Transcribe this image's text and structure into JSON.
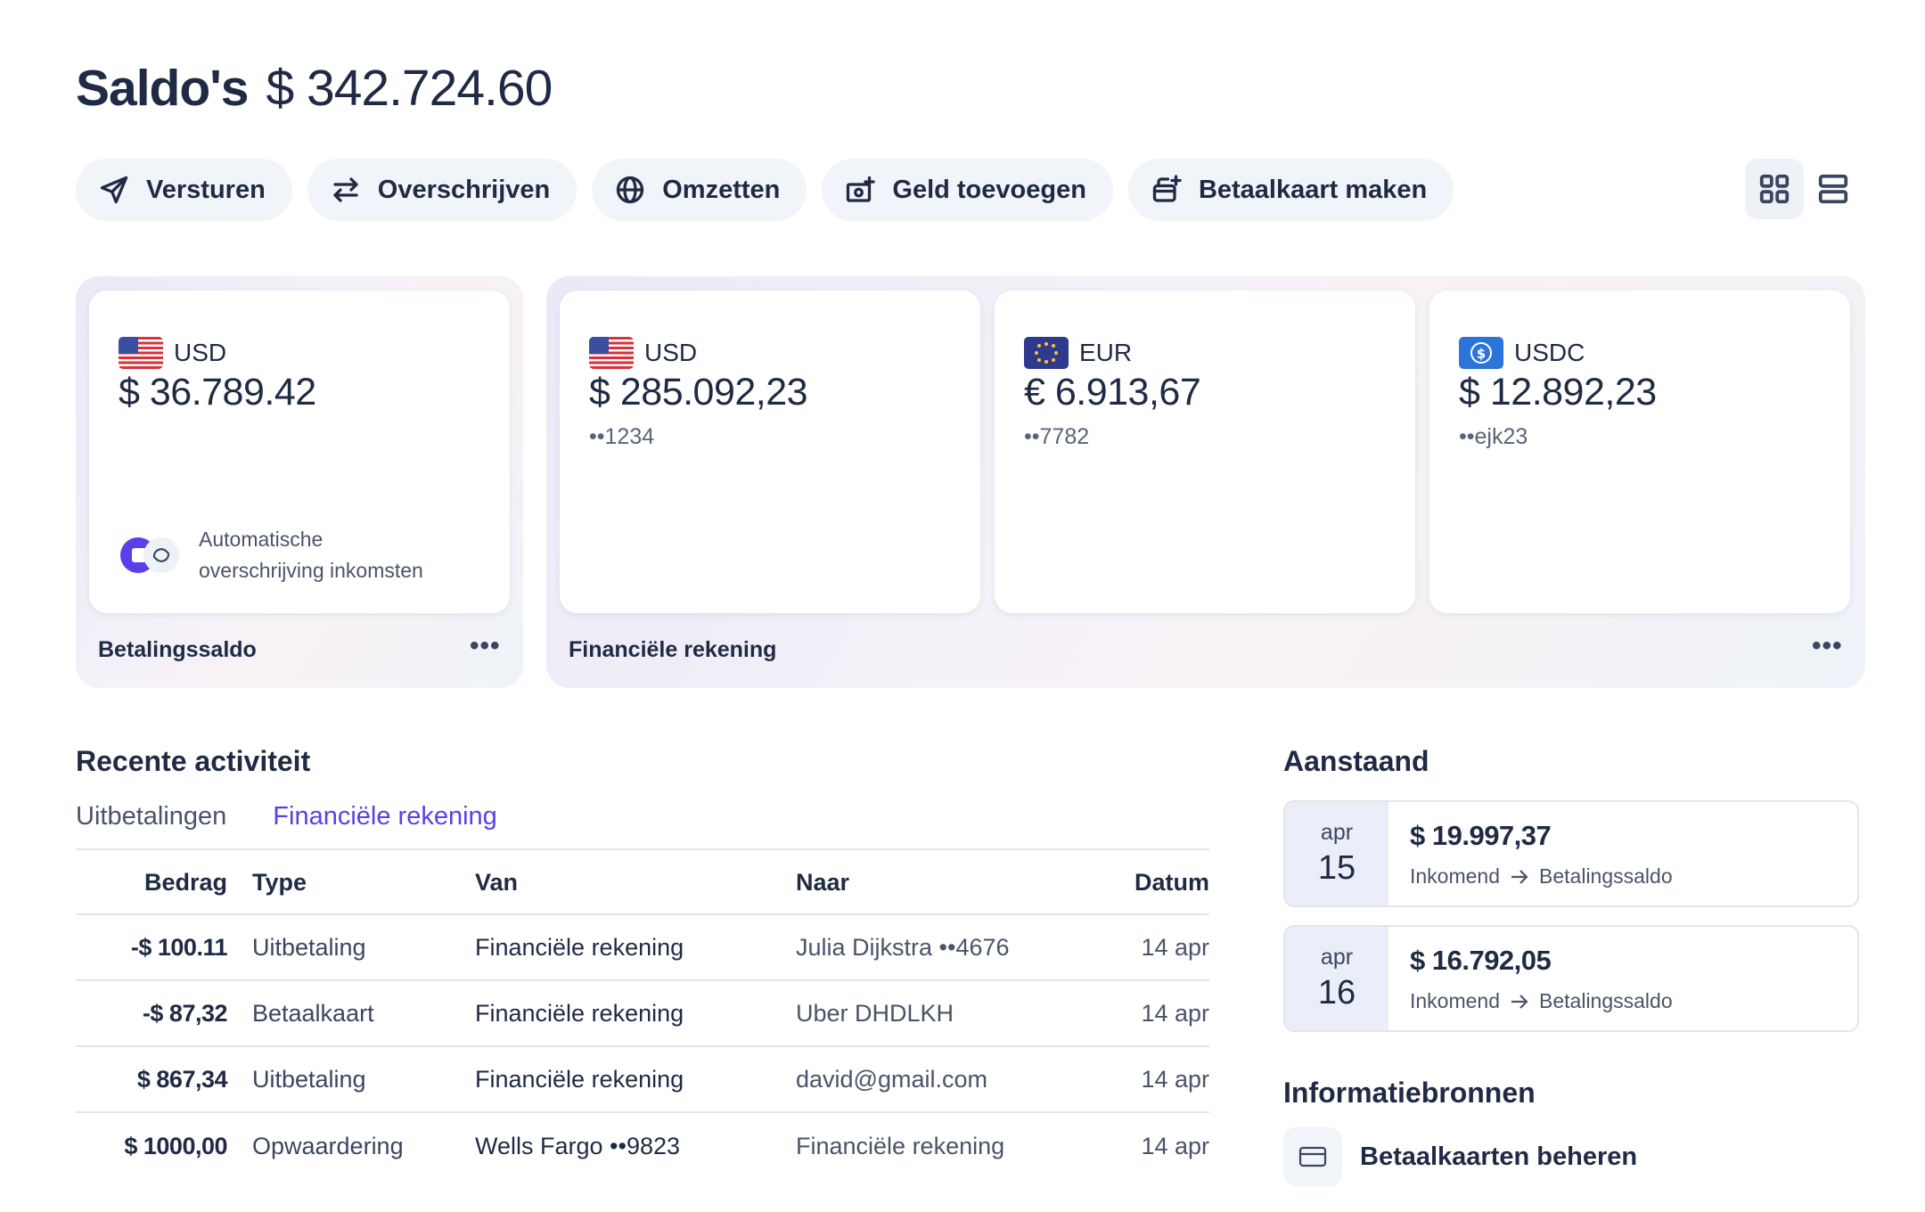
{
  "header": {
    "title": "Saldo's",
    "total": "$ 342.724.60"
  },
  "actions": [
    {
      "label": "Versturen",
      "icon": "send-icon"
    },
    {
      "label": "Overschrijven",
      "icon": "transfer-icon"
    },
    {
      "label": "Omzetten",
      "icon": "globe-icon"
    },
    {
      "label": "Geld toevoegen",
      "icon": "add-money-icon"
    },
    {
      "label": "Betaalkaart maken",
      "icon": "create-card-icon"
    }
  ],
  "view_toggle": {
    "active": "grid",
    "options": [
      "grid-view-icon",
      "list-view-icon"
    ]
  },
  "payment_group": {
    "label": "Betalingssaldo",
    "card": {
      "currency": "USD",
      "balance": "$ 36.789.42",
      "auto_line1": "Automatische",
      "auto_line2": "overschrijving inkomsten"
    }
  },
  "financial_group": {
    "label": "Financiële rekening",
    "cards": [
      {
        "currency": "USD",
        "balance": "$ 285.092,23",
        "account": "••1234",
        "icon": "us-flag-icon"
      },
      {
        "currency": "EUR",
        "balance": "€ 6.913,67",
        "account": "••7782",
        "icon": "eu-flag-icon"
      },
      {
        "currency": "USDC",
        "balance": "$ 12.892,23",
        "account": "••ejk23",
        "icon": "usdc-icon"
      }
    ]
  },
  "activity": {
    "title": "Recente activiteit",
    "tabs": [
      {
        "label": "Uitbetalingen",
        "active": false
      },
      {
        "label": "Financiële rekening",
        "active": true
      }
    ],
    "columns": [
      "Bedrag",
      "Type",
      "Van",
      "Naar",
      "Datum"
    ],
    "rows": [
      {
        "amount": "-$ 100.11",
        "type": "Uitbetaling",
        "from": "Financiële rekening",
        "to": "Julia Dijkstra ••4676",
        "date": "14 apr"
      },
      {
        "amount": "-$ 87,32",
        "type": "Betaalkaart",
        "from": "Financiële rekening",
        "to": "Uber DHDLKH",
        "date": "14 apr"
      },
      {
        "amount": "$ 867,34",
        "type": "Uitbetaling",
        "from": "Financiële rekening",
        "to": "david@gmail.com",
        "date": "14 apr"
      },
      {
        "amount": "$ 1000,00",
        "type": "Opwaardering",
        "from": "Wells Fargo ••9823",
        "to": "Financiële rekening",
        "date": "14 apr"
      }
    ]
  },
  "pending": {
    "title": "Aanstaand",
    "items": [
      {
        "month": "apr",
        "day": "15",
        "amount": "$ 19.997,37",
        "from": "Inkomend",
        "to": "Betalingssaldo"
      },
      {
        "month": "apr",
        "day": "16",
        "amount": "$ 16.792,05",
        "from": "Inkomend",
        "to": "Betalingssaldo"
      }
    ]
  },
  "resources": {
    "title": "Informatiebronnen",
    "items": [
      {
        "label": "Betaalkaarten beheren",
        "icon": "card-icon"
      }
    ]
  },
  "colors": {
    "accent": "#5b3fe8",
    "text": "#1f2a44",
    "muted": "#4a5468",
    "pill_bg": "#f1f4f8",
    "date_bg": "#ebeef9"
  }
}
